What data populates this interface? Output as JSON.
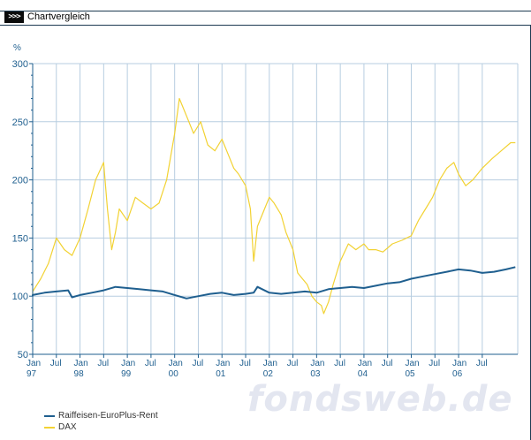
{
  "header": {
    "arrow_label": ">>>",
    "title": "Chartvergleich"
  },
  "watermark": "fondsweb.de",
  "chart_data": {
    "type": "line",
    "ylabel": "%",
    "ylim": [
      50,
      300
    ],
    "yticks": [
      50,
      100,
      150,
      200,
      250,
      300
    ],
    "xlim": [
      1997.0,
      2007.25
    ],
    "xticks": [
      {
        "x": 1997.0,
        "label": "Jan",
        "year": "97"
      },
      {
        "x": 1997.5,
        "label": "Jul",
        "year": ""
      },
      {
        "x": 1998.0,
        "label": "Jan",
        "year": "98"
      },
      {
        "x": 1998.5,
        "label": "Jul",
        "year": ""
      },
      {
        "x": 1999.0,
        "label": "Jan",
        "year": "99"
      },
      {
        "x": 1999.5,
        "label": "Jul",
        "year": ""
      },
      {
        "x": 2000.0,
        "label": "Jan",
        "year": "00"
      },
      {
        "x": 2000.5,
        "label": "Jul",
        "year": ""
      },
      {
        "x": 2001.0,
        "label": "Jan",
        "year": "01"
      },
      {
        "x": 2001.5,
        "label": "Jul",
        "year": ""
      },
      {
        "x": 2002.0,
        "label": "Jan",
        "year": "02"
      },
      {
        "x": 2002.5,
        "label": "Jul",
        "year": ""
      },
      {
        "x": 2003.0,
        "label": "Jan",
        "year": "03"
      },
      {
        "x": 2003.5,
        "label": "Jul",
        "year": ""
      },
      {
        "x": 2004.0,
        "label": "Jan",
        "year": "04"
      },
      {
        "x": 2004.5,
        "label": "Jul",
        "year": ""
      },
      {
        "x": 2005.0,
        "label": "Jan",
        "year": "05"
      },
      {
        "x": 2005.5,
        "label": "Jul",
        "year": ""
      },
      {
        "x": 2006.0,
        "label": "Jan",
        "year": "06"
      },
      {
        "x": 2006.5,
        "label": "Jul",
        "year": ""
      }
    ],
    "grid": true,
    "legend_position": "bottom-left",
    "series": [
      {
        "name": "Raiffeisen-EuroPlus-Rent",
        "color": "#1f5f8f",
        "x": [
          1996.92,
          1997.0,
          1997.25,
          1997.5,
          1997.75,
          1997.83,
          1998.0,
          1998.25,
          1998.5,
          1998.75,
          1999.0,
          1999.25,
          1999.5,
          1999.75,
          2000.0,
          2000.25,
          2000.5,
          2000.75,
          2001.0,
          2001.25,
          2001.5,
          2001.67,
          2001.75,
          2002.0,
          2002.25,
          2002.5,
          2002.75,
          2003.0,
          2003.25,
          2003.5,
          2003.75,
          2004.0,
          2004.25,
          2004.5,
          2004.75,
          2005.0,
          2005.25,
          2005.5,
          2005.75,
          2006.0,
          2006.25,
          2006.5,
          2006.75,
          2007.0,
          2007.2
        ],
        "y": [
          100,
          101,
          103,
          104,
          105,
          99,
          101,
          103,
          105,
          108,
          107,
          106,
          105,
          104,
          101,
          98,
          100,
          102,
          103,
          101,
          102,
          103,
          108,
          103,
          102,
          103,
          104,
          103,
          106,
          107,
          108,
          107,
          109,
          111,
          112,
          115,
          117,
          119,
          121,
          123,
          122,
          120,
          121,
          123,
          125
        ]
      },
      {
        "name": "DAX",
        "color": "#f2d233",
        "x": [
          1996.92,
          1997.0,
          1997.17,
          1997.33,
          1997.5,
          1997.67,
          1997.83,
          1998.0,
          1998.17,
          1998.33,
          1998.5,
          1998.58,
          1998.67,
          1998.75,
          1998.83,
          1999.0,
          1999.17,
          1999.33,
          1999.5,
          1999.67,
          1999.83,
          2000.0,
          2000.1,
          2000.25,
          2000.4,
          2000.55,
          2000.7,
          2000.85,
          2001.0,
          2001.15,
          2001.25,
          2001.35,
          2001.5,
          2001.6,
          2001.67,
          2001.75,
          2001.9,
          2002.0,
          2002.1,
          2002.25,
          2002.35,
          2002.5,
          2002.6,
          2002.7,
          2002.8,
          2002.9,
          2003.0,
          2003.1,
          2003.15,
          2003.25,
          2003.35,
          2003.5,
          2003.67,
          2003.83,
          2004.0,
          2004.1,
          2004.25,
          2004.4,
          2004.6,
          2004.8,
          2005.0,
          2005.15,
          2005.3,
          2005.45,
          2005.6,
          2005.75,
          2005.9,
          2006.0,
          2006.15,
          2006.3,
          2006.4,
          2006.5,
          2006.7,
          2006.9,
          2007.1,
          2007.2
        ],
        "y": [
          100,
          104,
          115,
          128,
          150,
          140,
          135,
          150,
          175,
          200,
          215,
          175,
          140,
          155,
          175,
          165,
          185,
          180,
          175,
          180,
          200,
          240,
          270,
          255,
          240,
          250,
          230,
          225,
          235,
          220,
          210,
          205,
          195,
          175,
          130,
          160,
          175,
          185,
          180,
          170,
          155,
          140,
          120,
          115,
          110,
          100,
          95,
          92,
          85,
          95,
          110,
          130,
          145,
          140,
          145,
          140,
          140,
          138,
          145,
          148,
          152,
          165,
          175,
          185,
          200,
          210,
          215,
          205,
          195,
          200,
          205,
          210,
          218,
          225,
          232,
          232
        ]
      }
    ]
  }
}
